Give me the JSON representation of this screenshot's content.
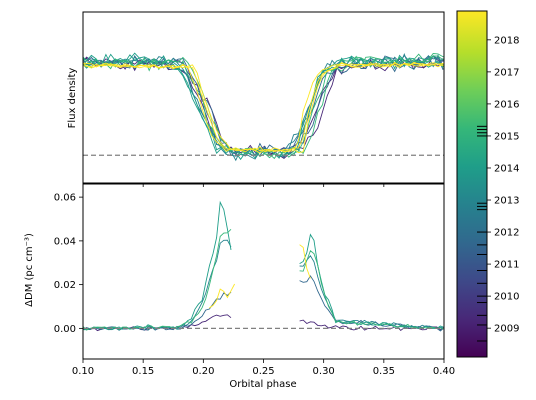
{
  "chart_data": [
    {
      "type": "line",
      "panel": "top",
      "title": "",
      "ylabel": "Flux density",
      "xlim": [
        0.1,
        0.4
      ],
      "ylim": [
        -0.3,
        1.55
      ],
      "x_ticks": [
        0.1,
        0.15,
        0.2,
        0.25,
        0.3,
        0.35,
        0.4
      ],
      "y_ticks_labeled": false,
      "reference_line": {
        "y": 0,
        "style": "dashed",
        "color": "#808080"
      },
      "grid": false,
      "series_groups": [
        {
          "year": 2009.2,
          "color": "#482878",
          "profile": [
            [
              0.1,
              1.0
            ],
            [
              0.18,
              0.98
            ],
            [
              0.19,
              0.8
            ],
            [
              0.2,
              0.55
            ],
            [
              0.21,
              0.2
            ],
            [
              0.22,
              0.05
            ],
            [
              0.27,
              0.03
            ],
            [
              0.29,
              0.25
            ],
            [
              0.3,
              0.7
            ],
            [
              0.31,
              0.95
            ],
            [
              0.4,
              1.0
            ]
          ]
        },
        {
          "year": 2011.5,
          "color": "#31688e",
          "profile": [
            [
              0.1,
              1.02
            ],
            [
              0.185,
              1.0
            ],
            [
              0.195,
              0.75
            ],
            [
              0.205,
              0.45
            ],
            [
              0.215,
              0.12
            ],
            [
              0.225,
              0.04
            ],
            [
              0.275,
              0.05
            ],
            [
              0.29,
              0.35
            ],
            [
              0.3,
              0.8
            ],
            [
              0.315,
              0.98
            ],
            [
              0.4,
              1.0
            ]
          ]
        },
        {
          "year": 2013.5,
          "color": "#26828e",
          "profile": [
            [
              0.1,
              1.0
            ],
            [
              0.18,
              1.02
            ],
            [
              0.19,
              0.85
            ],
            [
              0.205,
              0.4
            ],
            [
              0.215,
              0.1
            ],
            [
              0.23,
              0.02
            ],
            [
              0.275,
              0.04
            ],
            [
              0.285,
              0.3
            ],
            [
              0.3,
              0.85
            ],
            [
              0.31,
              1.0
            ],
            [
              0.4,
              1.02
            ]
          ]
        },
        {
          "year": 2015.3,
          "color": "#1f9e89",
          "profile": [
            [
              0.1,
              1.05
            ],
            [
              0.18,
              1.0
            ],
            [
              0.19,
              0.8
            ],
            [
              0.205,
              0.35
            ],
            [
              0.215,
              0.08
            ],
            [
              0.23,
              0.03
            ],
            [
              0.28,
              0.05
            ],
            [
              0.29,
              0.4
            ],
            [
              0.3,
              0.85
            ],
            [
              0.315,
              1.02
            ],
            [
              0.4,
              1.0
            ]
          ]
        },
        {
          "year": 2016.2,
          "color": "#35b779",
          "profile": [
            [
              0.1,
              1.0
            ],
            [
              0.185,
              1.0
            ],
            [
              0.2,
              0.6
            ],
            [
              0.21,
              0.2
            ],
            [
              0.22,
              0.05
            ],
            [
              0.28,
              0.03
            ],
            [
              0.29,
              0.35
            ],
            [
              0.305,
              0.9
            ],
            [
              0.32,
              1.0
            ],
            [
              0.4,
              1.05
            ]
          ]
        },
        {
          "year": 2018.5,
          "color": "#fde725",
          "profile": [
            [
              0.1,
              0.98
            ],
            [
              0.19,
              0.95
            ],
            [
              0.2,
              0.55
            ],
            [
              0.21,
              0.18
            ],
            [
              0.22,
              0.06
            ],
            [
              0.28,
              0.05
            ],
            [
              0.285,
              0.45
            ],
            [
              0.295,
              0.85
            ],
            [
              0.31,
              0.97
            ],
            [
              0.4,
              0.98
            ]
          ]
        }
      ]
    },
    {
      "type": "line",
      "panel": "bottom",
      "title": "",
      "xlabel": "Orbital phase",
      "ylabel": "ΔDM (pc cm⁻³)",
      "xlim": [
        0.1,
        0.4
      ],
      "ylim": [
        -0.014,
        0.066
      ],
      "x_ticks": [
        0.1,
        0.15,
        0.2,
        0.25,
        0.3,
        0.35,
        0.4
      ],
      "y_ticks": [
        0.0,
        0.02,
        0.04,
        0.06
      ],
      "reference_line": {
        "y": 0,
        "style": "dashed",
        "color": "#808080"
      },
      "grid": false,
      "series": [
        {
          "year": 2009.2,
          "color": "#482878",
          "points": [
            [
              0.1,
              0.0
            ],
            [
              0.18,
              0.0
            ],
            [
              0.19,
              0.001
            ],
            [
              0.2,
              0.003
            ],
            [
              0.21,
              0.006
            ],
            [
              0.22,
              0.006
            ],
            [
              0.28,
              0.004
            ],
            [
              0.29,
              0.003
            ],
            [
              0.3,
              0.001
            ],
            [
              0.32,
              0.0
            ],
            [
              0.4,
              0.0
            ]
          ]
        },
        {
          "year": 2011.5,
          "color": "#31688e",
          "points": [
            [
              0.1,
              0.0
            ],
            [
              0.18,
              0.0
            ],
            [
              0.19,
              0.002
            ],
            [
              0.2,
              0.006
            ],
            [
              0.21,
              0.012
            ],
            [
              0.215,
              0.015
            ],
            [
              0.283,
              0.022
            ],
            [
              0.29,
              0.025
            ],
            [
              0.3,
              0.01
            ],
            [
              0.31,
              0.003
            ],
            [
              0.4,
              0.0
            ]
          ]
        },
        {
          "year": 2013.5,
          "color": "#26828e",
          "points": [
            [
              0.1,
              0.0
            ],
            [
              0.18,
              0.0
            ],
            [
              0.19,
              0.003
            ],
            [
              0.2,
              0.012
            ],
            [
              0.21,
              0.03
            ],
            [
              0.215,
              0.04
            ],
            [
              0.283,
              0.028
            ],
            [
              0.29,
              0.035
            ],
            [
              0.3,
              0.015
            ],
            [
              0.31,
              0.004
            ],
            [
              0.4,
              0.0
            ]
          ]
        },
        {
          "year": 2015.3,
          "color": "#1f9e89",
          "points": [
            [
              0.1,
              0.0
            ],
            [
              0.18,
              0.001
            ],
            [
              0.19,
              0.004
            ],
            [
              0.2,
              0.015
            ],
            [
              0.21,
              0.04
            ],
            [
              0.215,
              0.06
            ],
            [
              0.223,
              0.036
            ],
            [
              0.283,
              0.03
            ],
            [
              0.29,
              0.043
            ],
            [
              0.3,
              0.018
            ],
            [
              0.31,
              0.003
            ],
            [
              0.4,
              0.0
            ]
          ]
        },
        {
          "year": 2016.2,
          "color": "#35b779",
          "points": [
            [
              0.1,
              0.0
            ],
            [
              0.18,
              0.001
            ],
            [
              0.19,
              0.003
            ],
            [
              0.2,
              0.01
            ],
            [
              0.21,
              0.03
            ],
            [
              0.215,
              0.045
            ],
            [
              0.282,
              0.025
            ],
            [
              0.29,
              0.038
            ],
            [
              0.3,
              0.016
            ],
            [
              0.31,
              0.003
            ],
            [
              0.4,
              0.0
            ]
          ]
        },
        {
          "year": 2018.5,
          "color": "#fde725",
          "points": [
            [
              0.205,
              0.01
            ],
            [
              0.21,
              0.013
            ],
            [
              0.215,
              0.018
            ],
            [
              0.22,
              0.015
            ],
            [
              0.225,
              0.02
            ],
            [
              0.282,
              0.04
            ],
            [
              0.285,
              0.028
            ],
            [
              0.29,
              0.022
            ]
          ]
        }
      ]
    }
  ],
  "colorbar": {
    "cmap": "viridis",
    "range": [
      2008.1,
      2018.9
    ],
    "ticks": [
      2009,
      2010,
      2011,
      2012,
      2013,
      2014,
      2015,
      2016,
      2017,
      2018
    ],
    "tick_labels": [
      "2009",
      "2010",
      "2011",
      "2012",
      "2013",
      "2014",
      "2015",
      "2016",
      "2017",
      "2018"
    ],
    "observation_marks": [
      2008.6,
      2009.1,
      2009.4,
      2009.8,
      2010.0,
      2010.4,
      2010.8,
      2011.3,
      2011.6,
      2012.0,
      2012.7,
      2012.8,
      2012.9,
      2015.0,
      2015.1,
      2015.2,
      2015.3
    ]
  }
}
